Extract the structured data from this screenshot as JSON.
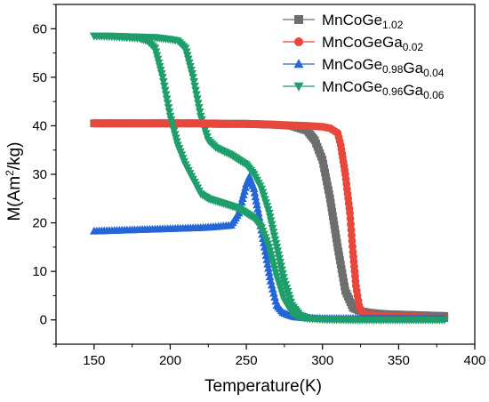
{
  "chart_data": {
    "type": "scatter",
    "xlabel": "Temperature(K)",
    "ylabel_main": "M(Am",
    "ylabel_sup": "2",
    "ylabel_tail": "/kg)",
    "xlim": [
      125,
      400
    ],
    "ylim": [
      -5,
      65
    ],
    "xticks": [
      150,
      200,
      250,
      300,
      350,
      400
    ],
    "yticks": [
      0,
      10,
      20,
      30,
      40,
      50,
      60
    ],
    "legend_position": "top-right",
    "grid": false,
    "series": [
      {
        "name_base": "MnCoGe",
        "name_sub1": "1.02",
        "name_mid": "",
        "name_sub2": "",
        "color": "#6e6e6e",
        "marker": "square",
        "x": [
          150,
          160,
          170,
          180,
          190,
          200,
          210,
          220,
          230,
          240,
          250,
          260,
          270,
          280,
          290,
          295,
          300,
          305,
          310,
          315,
          320,
          325,
          330,
          340,
          350,
          360,
          370,
          380
        ],
        "y": [
          40.5,
          40.5,
          40.5,
          40.5,
          40.5,
          40.5,
          40.5,
          40.5,
          40.4,
          40.4,
          40.4,
          40.3,
          40.2,
          40,
          39,
          37,
          33,
          25,
          15,
          6,
          2.5,
          1.8,
          1.5,
          1.2,
          1.1,
          1.0,
          0.9,
          0.8
        ]
      },
      {
        "name_base": "MnCoGeGa",
        "name_sub1": "0.02",
        "name_mid": "",
        "name_sub2": "",
        "color": "#e8473c",
        "marker": "circle",
        "x": [
          150,
          160,
          170,
          180,
          190,
          200,
          210,
          220,
          230,
          240,
          250,
          260,
          270,
          280,
          290,
          300,
          305,
          310,
          312,
          315,
          318,
          320,
          322,
          324,
          326,
          330,
          340,
          350,
          360,
          370,
          380
        ],
        "y": [
          40.5,
          40.5,
          40.5,
          40.5,
          40.5,
          40.5,
          40.5,
          40.5,
          40.5,
          40.4,
          40.4,
          40.3,
          40.2,
          40.1,
          40,
          39.8,
          39.5,
          38.5,
          36,
          30,
          22,
          14,
          7,
          3,
          1.5,
          1,
          0.8,
          0.7,
          0.6,
          0.5,
          0.4
        ]
      },
      {
        "name_base": "MnCoGe",
        "name_sub1": "0.98",
        "name_mid": "Ga",
        "name_sub2": "0.04",
        "color": "#2466d6",
        "marker": "triangle-up",
        "x": [
          150,
          160,
          170,
          180,
          190,
          200,
          210,
          220,
          230,
          240,
          245,
          250,
          252,
          255,
          258,
          262,
          266,
          270,
          274,
          278,
          282,
          290,
          300,
          320,
          340,
          360,
          380
        ],
        "y": [
          18.3,
          18.4,
          18.5,
          18.6,
          18.7,
          18.8,
          18.9,
          19,
          19.2,
          19.5,
          22,
          28,
          29.5,
          27,
          22,
          15,
          8,
          3,
          1.5,
          1,
          0.6,
          0.4,
          0.3,
          0.3,
          0.3,
          0.3,
          0.3
        ]
      },
      {
        "name_base": "MnCoGe",
        "name_sub1": "0.96",
        "name_mid": "Ga",
        "name_sub2": "0.06",
        "color": "#1f9e6b",
        "marker": "triangle-down",
        "x": [
          150,
          160,
          170,
          180,
          185,
          190,
          195,
          200,
          205,
          210,
          215,
          220,
          225,
          230,
          235,
          240,
          245,
          250,
          255,
          260,
          265,
          270,
          275,
          280,
          285,
          290,
          300,
          320,
          340,
          360,
          380
        ],
        "y": [
          58.5,
          58.4,
          58.2,
          58,
          57.5,
          56,
          50,
          42,
          36,
          32,
          29,
          26,
          25,
          24.5,
          24,
          23.5,
          23,
          22,
          21,
          19,
          15,
          9,
          4,
          1.5,
          0.6,
          0.3,
          0.1,
          0,
          0,
          0,
          0
        ]
      }
    ],
    "series_warming": {
      "description": "",
      "x": [
        150,
        160,
        170,
        180,
        190,
        200,
        205,
        210,
        215,
        220,
        225,
        230,
        240,
        250,
        255,
        260,
        265,
        270,
        275,
        280,
        285,
        290,
        300
      ],
      "y": [
        58.5,
        58.5,
        58.4,
        58.3,
        58.2,
        57.8,
        57.5,
        56,
        50,
        42,
        37,
        35.5,
        34,
        32,
        30,
        27,
        22,
        15,
        8,
        3,
        1,
        0.4,
        0.2
      ]
    }
  }
}
